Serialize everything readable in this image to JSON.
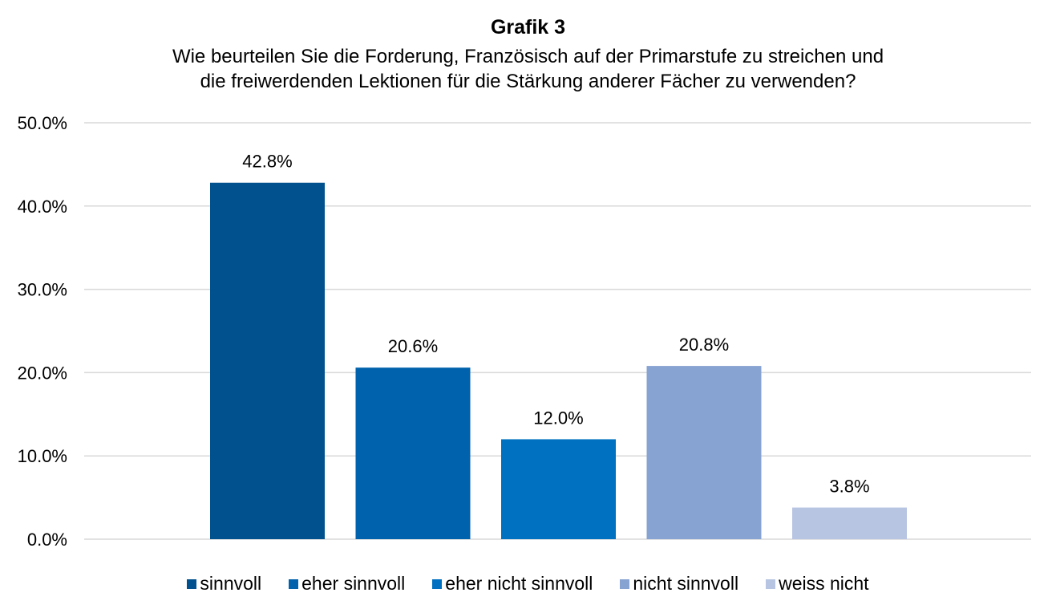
{
  "chart_data": {
    "type": "bar",
    "title": "Grafik 3",
    "subtitle_lines": [
      "Wie beurteilen Sie die Forderung, Französisch auf der Primarstufe zu streichen und",
      "die freiwerdenden Lektionen für die Stärkung anderer Fächer zu verwenden?"
    ],
    "xlabel": "",
    "ylabel": "",
    "ylim": [
      0,
      50
    ],
    "yticks": [
      "0.0%",
      "10.0%",
      "20.0%",
      "30.0%",
      "40.0%",
      "50.0%"
    ],
    "grid": true,
    "legend_position": "bottom",
    "series": [
      {
        "name": "sinnvoll",
        "value": 42.8,
        "label": "42.8%",
        "color": "#00518E"
      },
      {
        "name": "eher sinnvoll",
        "value": 20.6,
        "label": "20.6%",
        "color": "#0062AC"
      },
      {
        "name": "eher nicht sinnvoll",
        "value": 12.0,
        "label": "12.0%",
        "color": "#0071C1"
      },
      {
        "name": "nicht sinnvoll",
        "value": 20.8,
        "label": "20.8%",
        "color": "#87A3D1"
      },
      {
        "name": "weiss nicht",
        "value": 3.8,
        "label": "3.8%",
        "color": "#B8C5E2"
      }
    ]
  }
}
